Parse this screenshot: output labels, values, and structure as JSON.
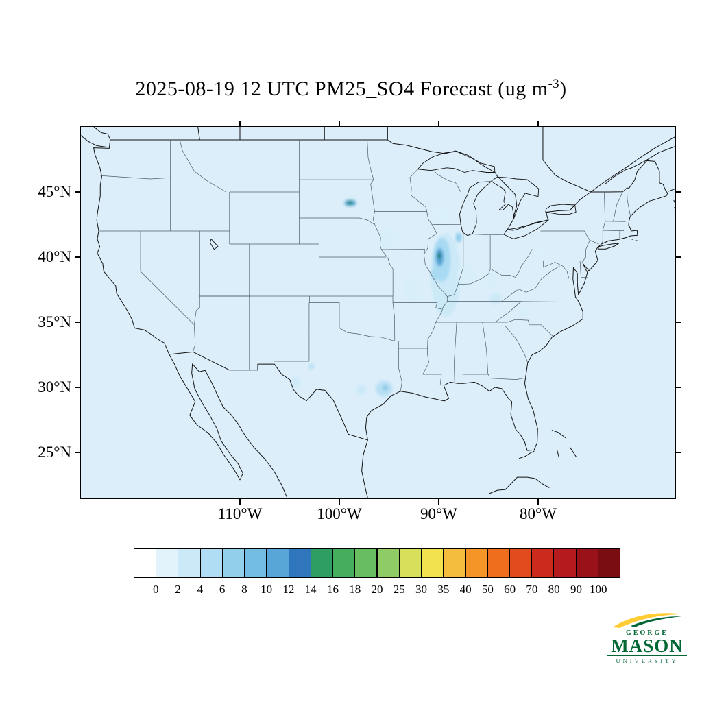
{
  "title": {
    "text": "2025-08-19 12 UTC PM25_SO4 Forecast (ug m",
    "sup": "-3",
    "suffix": ")"
  },
  "map": {
    "y_ticks": [
      "45°N",
      "40°N",
      "35°N",
      "30°N",
      "25°N"
    ],
    "x_ticks": [
      "110°W",
      "100°W",
      "90°W",
      "80°W"
    ],
    "field_background": "#dceefa",
    "hotspots": [
      {
        "name": "illinois-plume-outer",
        "lon": -89.3,
        "lat": 38.6,
        "rx": 1.5,
        "ry": 3.2,
        "color": "#cce9f8"
      },
      {
        "name": "illinois-plume-mid",
        "lon": -89.7,
        "lat": 39.8,
        "rx": 0.9,
        "ry": 1.7,
        "color": "#a8daf3"
      },
      {
        "name": "illinois-plume-inner",
        "lon": -89.9,
        "lat": 40.0,
        "rx": 0.4,
        "ry": 0.7,
        "color": "#57a6d7"
      },
      {
        "name": "illinois-core-dot",
        "lon": -89.95,
        "lat": 40.1,
        "rx": 0.18,
        "ry": 0.26,
        "color": "#1d7a70"
      },
      {
        "name": "chicago-spot",
        "lon": -88.0,
        "lat": 41.5,
        "rx": 0.32,
        "ry": 0.36,
        "color": "#92cfeb"
      },
      {
        "name": "st-louis-spot",
        "lon": -90.3,
        "lat": 38.7,
        "rx": 0.5,
        "ry": 0.5,
        "color": "#a8daf3"
      },
      {
        "name": "indiana-patch",
        "lon": -87.2,
        "lat": 38.6,
        "rx": 0.9,
        "ry": 0.9,
        "color": "#d8effa"
      },
      {
        "name": "ohio-valley-patch",
        "lon": -84.9,
        "lat": 38.3,
        "rx": 0.9,
        "ry": 0.7,
        "color": "#d8effa"
      },
      {
        "name": "east-tennessee-patch",
        "lon": -84.3,
        "lat": 36.8,
        "rx": 0.6,
        "ry": 0.45,
        "color": "#cce9f8"
      },
      {
        "name": "carolina-patch",
        "lon": -81.5,
        "lat": 35.7,
        "rx": 0.55,
        "ry": 0.4,
        "color": "#d8effa"
      },
      {
        "name": "pittsburgh-patch",
        "lon": -79.9,
        "lat": 40.4,
        "rx": 0.5,
        "ry": 0.4,
        "color": "#daf0fb"
      },
      {
        "name": "dakota-streak",
        "lon": -98.9,
        "lat": 44.15,
        "rx": 0.6,
        "ry": 0.22,
        "color": "#4ba0c8"
      },
      {
        "name": "dakota-streak-core",
        "lon": -98.95,
        "lat": 44.18,
        "rx": 0.28,
        "ry": 0.11,
        "color": "#1d7a70"
      },
      {
        "name": "iowa-nebraska-patch",
        "lon": -95.0,
        "lat": 41.4,
        "rx": 1.1,
        "ry": 0.9,
        "color": "#d8effa"
      },
      {
        "name": "wisconsin-patch",
        "lon": -89.8,
        "lat": 43.3,
        "rx": 0.8,
        "ry": 0.6,
        "color": "#daf0fb"
      },
      {
        "name": "houston-patch",
        "lon": -95.5,
        "lat": 29.9,
        "rx": 0.85,
        "ry": 0.6,
        "color": "#b9e0f4"
      },
      {
        "name": "houston-core",
        "lon": -95.4,
        "lat": 29.95,
        "rx": 0.3,
        "ry": 0.22,
        "color": "#8ccae9"
      },
      {
        "name": "central-texas-patch",
        "lon": -97.8,
        "lat": 29.8,
        "rx": 0.5,
        "ry": 0.38,
        "color": "#cce9f8"
      },
      {
        "name": "west-texas-patch",
        "lon": -104.4,
        "lat": 30.4,
        "rx": 0.5,
        "ry": 0.4,
        "color": "#cfeaf8"
      },
      {
        "name": "permian-spot",
        "lon": -102.8,
        "lat": 31.6,
        "rx": 0.3,
        "ry": 0.22,
        "color": "#b9e0f4"
      },
      {
        "name": "missouri-patch",
        "lon": -92.6,
        "lat": 37.6,
        "rx": 1.1,
        "ry": 1.2,
        "color": "#d8effa"
      }
    ]
  },
  "colorbar": {
    "labels": [
      "0",
      "2",
      "4",
      "6",
      "8",
      "10",
      "12",
      "14",
      "16",
      "18",
      "20",
      "25",
      "30",
      "35",
      "40",
      "50",
      "60",
      "70",
      "80",
      "90",
      "100"
    ],
    "colors": [
      "#ffffff",
      "#e3f3fb",
      "#cce9f8",
      "#b0ddf3",
      "#92cfeb",
      "#74bde2",
      "#57a6d7",
      "#3076bd",
      "#2f9e63",
      "#46ad5c",
      "#67bd60",
      "#8fcc66",
      "#d8e05b",
      "#f2e24e",
      "#f5bd3d",
      "#f59527",
      "#ef6e1e",
      "#e04a1c",
      "#cd2a1e",
      "#b51a1e",
      "#99121a",
      "#7a0d12"
    ]
  },
  "logo": {
    "line1": "GEORGE",
    "line2": "MASON",
    "line3": "UNIVERSITY",
    "green": "#006633",
    "gold": "#FFCC33"
  }
}
